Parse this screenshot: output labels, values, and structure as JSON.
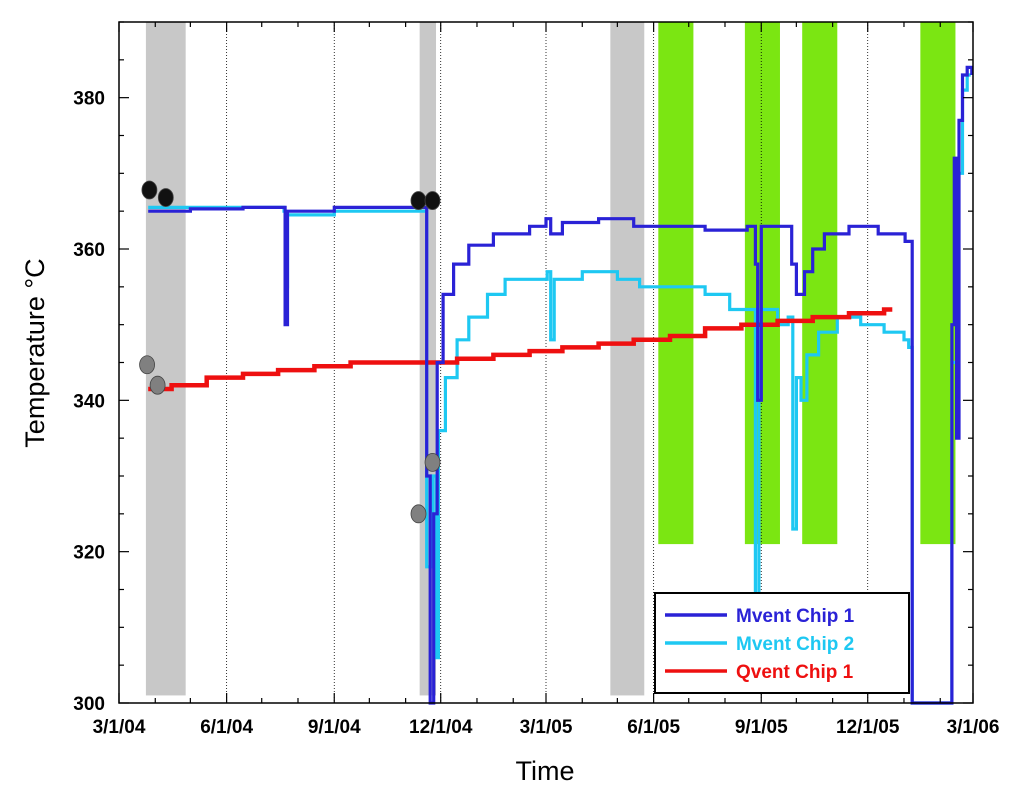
{
  "chart_data": {
    "type": "line",
    "title": "",
    "xlabel": "Time",
    "ylabel": "Temperature °C",
    "x_ticks": [
      "3/1/04",
      "6/1/04",
      "9/1/04",
      "12/1/04",
      "3/1/05",
      "6/1/05",
      "9/1/05",
      "12/1/05",
      "3/1/06"
    ],
    "y_ticks": [
      300,
      320,
      340,
      360,
      380
    ],
    "xlim": [
      "2004-03-01",
      "2006-03-01"
    ],
    "ylim": [
      300,
      390
    ],
    "grid": "vertical dotted lines at major x ticks",
    "legend_position": "bottom-right",
    "series": [
      {
        "name": "Mvent Chip 1",
        "color": "#2a22d6",
        "points": [
          [
            "2004-03-26",
            365.0
          ],
          [
            "2004-05-01",
            365.3
          ],
          [
            "2004-06-15",
            365.5
          ],
          [
            "2004-07-20",
            365.5
          ],
          [
            "2004-07-21",
            350.0
          ],
          [
            "2004-07-23",
            365.0
          ],
          [
            "2004-09-01",
            365.5
          ],
          [
            "2004-11-15",
            365.5
          ],
          [
            "2004-11-19",
            330.0
          ],
          [
            "2004-11-22",
            300.0
          ],
          [
            "2004-11-25",
            325.0
          ],
          [
            "2004-11-28",
            345.0
          ],
          [
            "2004-12-03",
            354.0
          ],
          [
            "2004-12-12",
            358.0
          ],
          [
            "2004-12-25",
            360.5
          ],
          [
            "2005-01-15",
            362.0
          ],
          [
            "2005-02-15",
            363.0
          ],
          [
            "2005-03-01",
            364.0
          ],
          [
            "2005-03-05",
            362.0
          ],
          [
            "2005-03-15",
            363.5
          ],
          [
            "2005-04-15",
            364.0
          ],
          [
            "2005-05-15",
            363.0
          ],
          [
            "2005-06-15",
            363.0
          ],
          [
            "2005-07-15",
            362.5
          ],
          [
            "2005-08-20",
            363.0
          ],
          [
            "2005-08-27",
            358.0
          ],
          [
            "2005-08-29",
            340.0
          ],
          [
            "2005-09-01",
            363.0
          ],
          [
            "2005-09-20",
            363.0
          ],
          [
            "2005-09-27",
            358.0
          ],
          [
            "2005-10-01",
            354.0
          ],
          [
            "2005-10-08",
            357.0
          ],
          [
            "2005-10-15",
            360.0
          ],
          [
            "2005-10-25",
            362.0
          ],
          [
            "2005-11-15",
            363.0
          ],
          [
            "2005-12-10",
            362.0
          ],
          [
            "2006-01-02",
            361.0
          ],
          [
            "2006-01-07",
            361.0
          ],
          [
            "2006-01-08",
            300.0
          ],
          [
            "2006-02-09",
            300.0
          ],
          [
            "2006-02-11",
            350.0
          ],
          [
            "2006-02-13",
            372.0
          ],
          [
            "2006-02-15",
            335.0
          ],
          [
            "2006-02-17",
            377.0
          ],
          [
            "2006-02-20",
            383.0
          ],
          [
            "2006-02-24",
            384.0
          ],
          [
            "2006-02-28",
            383.0
          ]
        ]
      },
      {
        "name": "Mvent Chip 2",
        "color": "#1ec8f2",
        "points": [
          [
            "2004-03-26",
            365.5
          ],
          [
            "2004-06-15",
            365.5
          ],
          [
            "2004-07-20",
            365.0
          ],
          [
            "2004-07-21",
            355.0
          ],
          [
            "2004-07-23",
            364.5
          ],
          [
            "2004-09-01",
            365.0
          ],
          [
            "2004-11-15",
            365.0
          ],
          [
            "2004-11-19",
            318.0
          ],
          [
            "2004-11-22",
            318.0
          ],
          [
            "2004-11-24",
            330.0
          ],
          [
            "2004-11-27",
            306.0
          ],
          [
            "2004-11-29",
            336.0
          ],
          [
            "2004-12-05",
            343.0
          ],
          [
            "2004-12-15",
            348.0
          ],
          [
            "2004-12-25",
            351.0
          ],
          [
            "2005-01-10",
            354.0
          ],
          [
            "2005-01-25",
            356.0
          ],
          [
            "2005-02-20",
            356.0
          ],
          [
            "2005-03-02",
            357.0
          ],
          [
            "2005-03-05",
            348.0
          ],
          [
            "2005-03-08",
            356.0
          ],
          [
            "2005-04-01",
            357.0
          ],
          [
            "2005-05-01",
            356.0
          ],
          [
            "2005-05-20",
            355.0
          ],
          [
            "2005-06-15",
            355.0
          ],
          [
            "2005-07-15",
            354.0
          ],
          [
            "2005-08-05",
            352.0
          ],
          [
            "2005-08-20",
            352.0
          ],
          [
            "2005-08-27",
            314.0
          ],
          [
            "2005-08-30",
            352.0
          ],
          [
            "2005-09-15",
            350.0
          ],
          [
            "2005-09-24",
            351.0
          ],
          [
            "2005-09-28",
            323.0
          ],
          [
            "2005-10-01",
            343.0
          ],
          [
            "2005-10-05",
            340.0
          ],
          [
            "2005-10-10",
            346.0
          ],
          [
            "2005-10-20",
            349.0
          ],
          [
            "2005-11-05",
            351.0
          ],
          [
            "2005-11-25",
            350.0
          ],
          [
            "2005-12-15",
            349.0
          ],
          [
            "2006-01-01",
            348.0
          ],
          [
            "2006-01-05",
            347.0
          ],
          [
            "2006-01-08",
            300.0
          ],
          [
            "2006-02-09",
            300.0
          ],
          [
            "2006-02-11",
            345.0
          ],
          [
            "2006-02-15",
            370.0
          ],
          [
            "2006-02-20",
            381.0
          ],
          [
            "2006-02-24",
            383.0
          ],
          [
            "2006-02-27",
            383.0
          ]
        ]
      },
      {
        "name": "Qvent Chip 1",
        "color": "#ee1010",
        "points": [
          [
            "2004-03-26",
            341.5
          ],
          [
            "2004-04-15",
            342.0
          ],
          [
            "2004-05-15",
            343.0
          ],
          [
            "2004-06-15",
            343.5
          ],
          [
            "2004-07-15",
            344.0
          ],
          [
            "2004-08-15",
            344.5
          ],
          [
            "2004-09-15",
            345.0
          ],
          [
            "2004-10-15",
            345.0
          ],
          [
            "2004-11-15",
            345.0
          ],
          [
            "2004-12-15",
            345.5
          ],
          [
            "2005-01-15",
            346.0
          ],
          [
            "2005-02-15",
            346.5
          ],
          [
            "2005-03-15",
            347.0
          ],
          [
            "2005-04-15",
            347.5
          ],
          [
            "2005-05-15",
            348.0
          ],
          [
            "2005-06-15",
            348.5
          ],
          [
            "2005-07-15",
            349.5
          ],
          [
            "2005-08-15",
            350.0
          ],
          [
            "2005-09-15",
            350.5
          ],
          [
            "2005-10-15",
            351.0
          ],
          [
            "2005-11-15",
            351.5
          ],
          [
            "2005-12-15",
            352.0
          ],
          [
            "2005-12-22",
            352.0
          ]
        ]
      }
    ],
    "shaded_regions": [
      {
        "color": "#c8c8c8",
        "x_start": "2004-03-24",
        "x_end": "2004-04-27",
        "y_bottom": 301,
        "y_top": 390
      },
      {
        "color": "#c8c8c8",
        "x_start": "2004-11-13",
        "x_end": "2004-11-27",
        "y_bottom": 301,
        "y_top": 390
      },
      {
        "color": "#c8c8c8",
        "x_start": "2005-04-25",
        "x_end": "2005-05-24",
        "y_bottom": 301,
        "y_top": 390
      },
      {
        "color": "#7be612",
        "x_start": "2005-06-05",
        "x_end": "2005-07-05",
        "y_bottom": 321,
        "y_top": 390
      },
      {
        "color": "#7be612",
        "x_start": "2005-08-18",
        "x_end": "2005-09-17",
        "y_bottom": 321,
        "y_top": 390
      },
      {
        "color": "#7be612",
        "x_start": "2005-10-06",
        "x_end": "2005-11-05",
        "y_bottom": 321,
        "y_top": 390
      },
      {
        "color": "#7be612",
        "x_start": "2006-01-15",
        "x_end": "2006-02-14",
        "y_bottom": 321,
        "y_top": 390
      }
    ],
    "markers": [
      {
        "color": "#111111",
        "x": "2004-03-27",
        "y": 367.8
      },
      {
        "color": "#111111",
        "x": "2004-04-10",
        "y": 366.8
      },
      {
        "color": "#111111",
        "x": "2004-11-12",
        "y": 366.4
      },
      {
        "color": "#111111",
        "x": "2004-11-24",
        "y": 366.4
      },
      {
        "color": "#808080",
        "x": "2004-03-25",
        "y": 344.7
      },
      {
        "color": "#808080",
        "x": "2004-04-03",
        "y": 342.0
      },
      {
        "color": "#808080",
        "x": "2004-11-12",
        "y": 325.0
      },
      {
        "color": "#808080",
        "x": "2004-11-24",
        "y": 331.8
      }
    ]
  }
}
